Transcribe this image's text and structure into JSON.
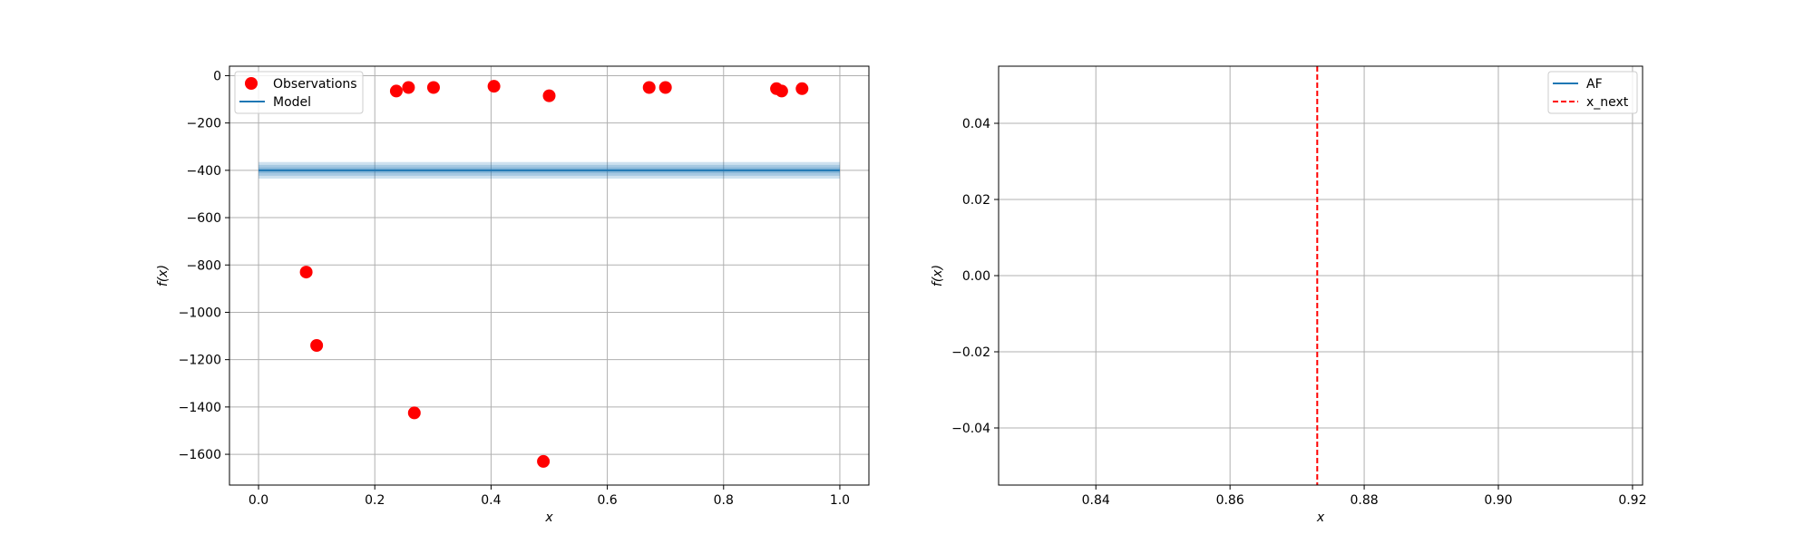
{
  "chart_data": [
    {
      "type": "scatter",
      "xlabel": "x",
      "ylabel": "f(x)",
      "xlim": [
        -0.05,
        1.05
      ],
      "ylim": [
        -1730,
        40
      ],
      "xticks": [
        0.0,
        0.2,
        0.4,
        0.6,
        0.8,
        1.0
      ],
      "xtick_labels": [
        "0.0",
        "0.2",
        "0.4",
        "0.6",
        "0.8",
        "1.0"
      ],
      "yticks": [
        0,
        -200,
        -400,
        -600,
        -800,
        -1000,
        -1200,
        -1400,
        -1600
      ],
      "ytick_labels": [
        "0",
        "−200",
        "−400",
        "−600",
        "−800",
        "−1000",
        "−1200",
        "−1400",
        "−1600"
      ],
      "grid": true,
      "legend_position": "top-left",
      "series": [
        {
          "name": "Observations",
          "kind": "scatter",
          "color": "#ff0000",
          "points": [
            {
              "x": 0.082,
              "y": -830
            },
            {
              "x": 0.1,
              "y": -1140
            },
            {
              "x": 0.237,
              "y": -65
            },
            {
              "x": 0.258,
              "y": -50
            },
            {
              "x": 0.268,
              "y": -1425
            },
            {
              "x": 0.301,
              "y": -50
            },
            {
              "x": 0.405,
              "y": -45
            },
            {
              "x": 0.49,
              "y": -1630
            },
            {
              "x": 0.5,
              "y": -85
            },
            {
              "x": 0.672,
              "y": -50
            },
            {
              "x": 0.7,
              "y": -50
            },
            {
              "x": 0.891,
              "y": -55
            },
            {
              "x": 0.9,
              "y": -65
            },
            {
              "x": 0.935,
              "y": -55
            }
          ]
        },
        {
          "name": "Model",
          "kind": "line",
          "color": "#1f77b4",
          "x": [
            0.0,
            1.0
          ],
          "y": [
            -400,
            -400
          ],
          "band_color": "#1f77b4",
          "bands": [
            {
              "lower": -435,
              "upper": -365
            },
            {
              "lower": -423,
              "upper": -377
            },
            {
              "lower": -412,
              "upper": -388
            }
          ]
        }
      ]
    },
    {
      "type": "line",
      "xlabel": "x",
      "ylabel": "f(x)",
      "xlim": [
        0.8255,
        0.9215
      ],
      "ylim": [
        -0.055,
        0.055
      ],
      "xticks": [
        0.84,
        0.86,
        0.88,
        0.9,
        0.92
      ],
      "xtick_labels": [
        "0.84",
        "0.86",
        "0.88",
        "0.90",
        "0.92"
      ],
      "yticks": [
        0.04,
        0.02,
        0.0,
        -0.02,
        -0.04
      ],
      "ytick_labels": [
        "0.04",
        "0.02",
        "0.00",
        "−0.02",
        "−0.04"
      ],
      "grid": true,
      "legend_position": "top-right",
      "series": [
        {
          "name": "AF",
          "kind": "line",
          "color": "#1f77b4",
          "x": [],
          "y": []
        },
        {
          "name": "x_next",
          "kind": "vline",
          "color": "#ff0000",
          "linestyle": "dashed",
          "x": 0.873
        }
      ]
    }
  ]
}
